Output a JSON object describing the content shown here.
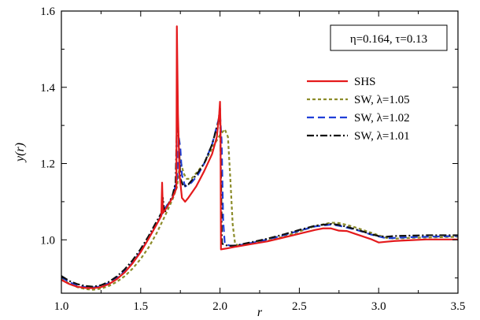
{
  "chart_data": {
    "type": "line",
    "xlabel": "r",
    "ylabel": "y(r)",
    "xlim": [
      1.0,
      3.5
    ],
    "ylim": [
      0.86,
      1.6
    ],
    "xticks": [
      "1.0",
      "1.5",
      "2.0",
      "2.5",
      "3.0",
      "3.5"
    ],
    "yticks": [
      "1.0",
      "1.2",
      "1.4",
      "1.6"
    ],
    "grid": false,
    "legend_position": "right",
    "annotation": "η=0.164, τ=0.13",
    "series": [
      {
        "name": "SHS",
        "color": "#e41a1c",
        "dash": "solid",
        "points": [
          [
            1.0,
            0.895
          ],
          [
            1.05,
            0.884
          ],
          [
            1.1,
            0.877
          ],
          [
            1.15,
            0.874
          ],
          [
            1.2,
            0.873
          ],
          [
            1.25,
            0.876
          ],
          [
            1.3,
            0.884
          ],
          [
            1.35,
            0.897
          ],
          [
            1.4,
            0.915
          ],
          [
            1.45,
            0.939
          ],
          [
            1.5,
            0.968
          ],
          [
            1.55,
            1.003
          ],
          [
            1.6,
            1.04
          ],
          [
            1.63,
            1.063
          ],
          [
            1.635,
            1.15
          ],
          [
            1.64,
            1.07
          ],
          [
            1.66,
            1.082
          ],
          [
            1.7,
            1.11
          ],
          [
            1.725,
            1.135
          ],
          [
            1.728,
            1.56
          ],
          [
            1.735,
            1.33
          ],
          [
            1.745,
            1.17
          ],
          [
            1.76,
            1.11
          ],
          [
            1.78,
            1.1
          ],
          [
            1.8,
            1.11
          ],
          [
            1.85,
            1.14
          ],
          [
            1.9,
            1.18
          ],
          [
            1.95,
            1.225
          ],
          [
            1.98,
            1.27
          ],
          [
            1.995,
            1.33
          ],
          [
            2.0,
            1.362
          ],
          [
            2.003,
            1.3
          ],
          [
            2.006,
            0.975
          ],
          [
            2.05,
            0.978
          ],
          [
            2.1,
            0.982
          ],
          [
            2.2,
            0.989
          ],
          [
            2.3,
            0.996
          ],
          [
            2.4,
            1.006
          ],
          [
            2.5,
            1.016
          ],
          [
            2.6,
            1.026
          ],
          [
            2.65,
            1.03
          ],
          [
            2.7,
            1.03
          ],
          [
            2.75,
            1.024
          ],
          [
            2.8,
            1.023
          ],
          [
            2.85,
            1.016
          ],
          [
            2.9,
            1.009
          ],
          [
            2.95,
            1.002
          ],
          [
            3.0,
            0.993
          ],
          [
            3.05,
            0.995
          ],
          [
            3.1,
            0.997
          ],
          [
            3.2,
            0.999
          ],
          [
            3.3,
            1.001
          ],
          [
            3.4,
            1.001
          ],
          [
            3.5,
            1.001
          ]
        ]
      },
      {
        "name": "SW, λ=1.05",
        "color": "#8c8c2a",
        "dash": "short",
        "points": [
          [
            1.0,
            0.898
          ],
          [
            1.05,
            0.885
          ],
          [
            1.1,
            0.876
          ],
          [
            1.15,
            0.871
          ],
          [
            1.2,
            0.869
          ],
          [
            1.25,
            0.872
          ],
          [
            1.3,
            0.879
          ],
          [
            1.35,
            0.89
          ],
          [
            1.4,
            0.905
          ],
          [
            1.45,
            0.925
          ],
          [
            1.5,
            0.95
          ],
          [
            1.55,
            0.98
          ],
          [
            1.6,
            1.017
          ],
          [
            1.65,
            1.06
          ],
          [
            1.7,
            1.105
          ],
          [
            1.73,
            1.14
          ],
          [
            1.75,
            1.21
          ],
          [
            1.77,
            1.175
          ],
          [
            1.79,
            1.16
          ],
          [
            1.82,
            1.16
          ],
          [
            1.86,
            1.18
          ],
          [
            1.9,
            1.2
          ],
          [
            1.95,
            1.24
          ],
          [
            2.0,
            1.275
          ],
          [
            2.03,
            1.29
          ],
          [
            2.05,
            1.27
          ],
          [
            2.065,
            1.16
          ],
          [
            2.08,
            1.04
          ],
          [
            2.095,
            0.99
          ],
          [
            2.12,
            0.984
          ],
          [
            2.2,
            0.99
          ],
          [
            2.3,
            0.998
          ],
          [
            2.4,
            1.008
          ],
          [
            2.5,
            1.022
          ],
          [
            2.6,
            1.036
          ],
          [
            2.7,
            1.045
          ],
          [
            2.75,
            1.044
          ],
          [
            2.8,
            1.039
          ],
          [
            2.85,
            1.033
          ],
          [
            2.9,
            1.026
          ],
          [
            2.95,
            1.019
          ],
          [
            3.0,
            1.012
          ],
          [
            3.05,
            1.005
          ],
          [
            3.1,
            1.003
          ],
          [
            3.2,
            1.005
          ],
          [
            3.3,
            1.006
          ],
          [
            3.4,
            1.007
          ],
          [
            3.5,
            1.008
          ]
        ]
      },
      {
        "name": "SW, λ=1.02",
        "color": "#1f3fd8",
        "dash": "long",
        "points": [
          [
            1.0,
            0.902
          ],
          [
            1.05,
            0.889
          ],
          [
            1.1,
            0.881
          ],
          [
            1.15,
            0.876
          ],
          [
            1.2,
            0.875
          ],
          [
            1.25,
            0.878
          ],
          [
            1.3,
            0.887
          ],
          [
            1.35,
            0.9
          ],
          [
            1.4,
            0.918
          ],
          [
            1.45,
            0.941
          ],
          [
            1.5,
            0.97
          ],
          [
            1.55,
            1.004
          ],
          [
            1.6,
            1.042
          ],
          [
            1.65,
            1.08
          ],
          [
            1.68,
            1.1
          ],
          [
            1.7,
            1.11
          ],
          [
            1.73,
            1.16
          ],
          [
            1.74,
            1.27
          ],
          [
            1.75,
            1.24
          ],
          [
            1.76,
            1.17
          ],
          [
            1.78,
            1.14
          ],
          [
            1.82,
            1.15
          ],
          [
            1.86,
            1.17
          ],
          [
            1.9,
            1.2
          ],
          [
            1.95,
            1.25
          ],
          [
            2.0,
            1.33
          ],
          [
            2.01,
            1.26
          ],
          [
            2.02,
            1.05
          ],
          [
            2.03,
            0.99
          ],
          [
            2.06,
            0.985
          ],
          [
            2.1,
            0.984
          ],
          [
            2.2,
            0.992
          ],
          [
            2.3,
            1.001
          ],
          [
            2.4,
            1.012
          ],
          [
            2.5,
            1.024
          ],
          [
            2.6,
            1.035
          ],
          [
            2.7,
            1.04
          ],
          [
            2.75,
            1.037
          ],
          [
            2.8,
            1.032
          ],
          [
            2.85,
            1.027
          ],
          [
            2.9,
            1.021
          ],
          [
            2.95,
            1.014
          ],
          [
            3.0,
            1.009
          ],
          [
            3.05,
            1.004
          ],
          [
            3.1,
            1.005
          ],
          [
            3.2,
            1.007
          ],
          [
            3.3,
            1.008
          ],
          [
            3.4,
            1.009
          ],
          [
            3.5,
            1.01
          ]
        ]
      },
      {
        "name": "SW, λ=1.01",
        "color": "#111111",
        "dash": "dashdot",
        "points": [
          [
            1.0,
            0.905
          ],
          [
            1.05,
            0.892
          ],
          [
            1.1,
            0.884
          ],
          [
            1.15,
            0.879
          ],
          [
            1.2,
            0.877
          ],
          [
            1.25,
            0.881
          ],
          [
            1.3,
            0.89
          ],
          [
            1.35,
            0.904
          ],
          [
            1.4,
            0.923
          ],
          [
            1.45,
            0.947
          ],
          [
            1.5,
            0.976
          ],
          [
            1.55,
            1.01
          ],
          [
            1.6,
            1.048
          ],
          [
            1.63,
            1.07
          ],
          [
            1.64,
            1.11
          ],
          [
            1.65,
            1.07
          ],
          [
            1.67,
            1.09
          ],
          [
            1.7,
            1.115
          ],
          [
            1.72,
            1.15
          ],
          [
            1.73,
            1.33
          ],
          [
            1.74,
            1.26
          ],
          [
            1.75,
            1.16
          ],
          [
            1.77,
            1.14
          ],
          [
            1.8,
            1.145
          ],
          [
            1.85,
            1.17
          ],
          [
            1.9,
            1.2
          ],
          [
            1.95,
            1.25
          ],
          [
            1.99,
            1.31
          ],
          [
            2.0,
            1.345
          ],
          [
            2.005,
            1.2
          ],
          [
            2.012,
            0.99
          ],
          [
            2.05,
            0.984
          ],
          [
            2.1,
            0.985
          ],
          [
            2.2,
            0.994
          ],
          [
            2.3,
            1.003
          ],
          [
            2.4,
            1.014
          ],
          [
            2.5,
            1.026
          ],
          [
            2.6,
            1.037
          ],
          [
            2.7,
            1.042
          ],
          [
            2.75,
            1.039
          ],
          [
            2.8,
            1.034
          ],
          [
            2.85,
            1.028
          ],
          [
            2.9,
            1.022
          ],
          [
            2.95,
            1.015
          ],
          [
            3.0,
            1.01
          ],
          [
            3.05,
            1.008
          ],
          [
            3.1,
            1.01
          ],
          [
            3.2,
            1.011
          ],
          [
            3.3,
            1.012
          ],
          [
            3.4,
            1.012
          ],
          [
            3.5,
            1.012
          ]
        ]
      }
    ]
  }
}
